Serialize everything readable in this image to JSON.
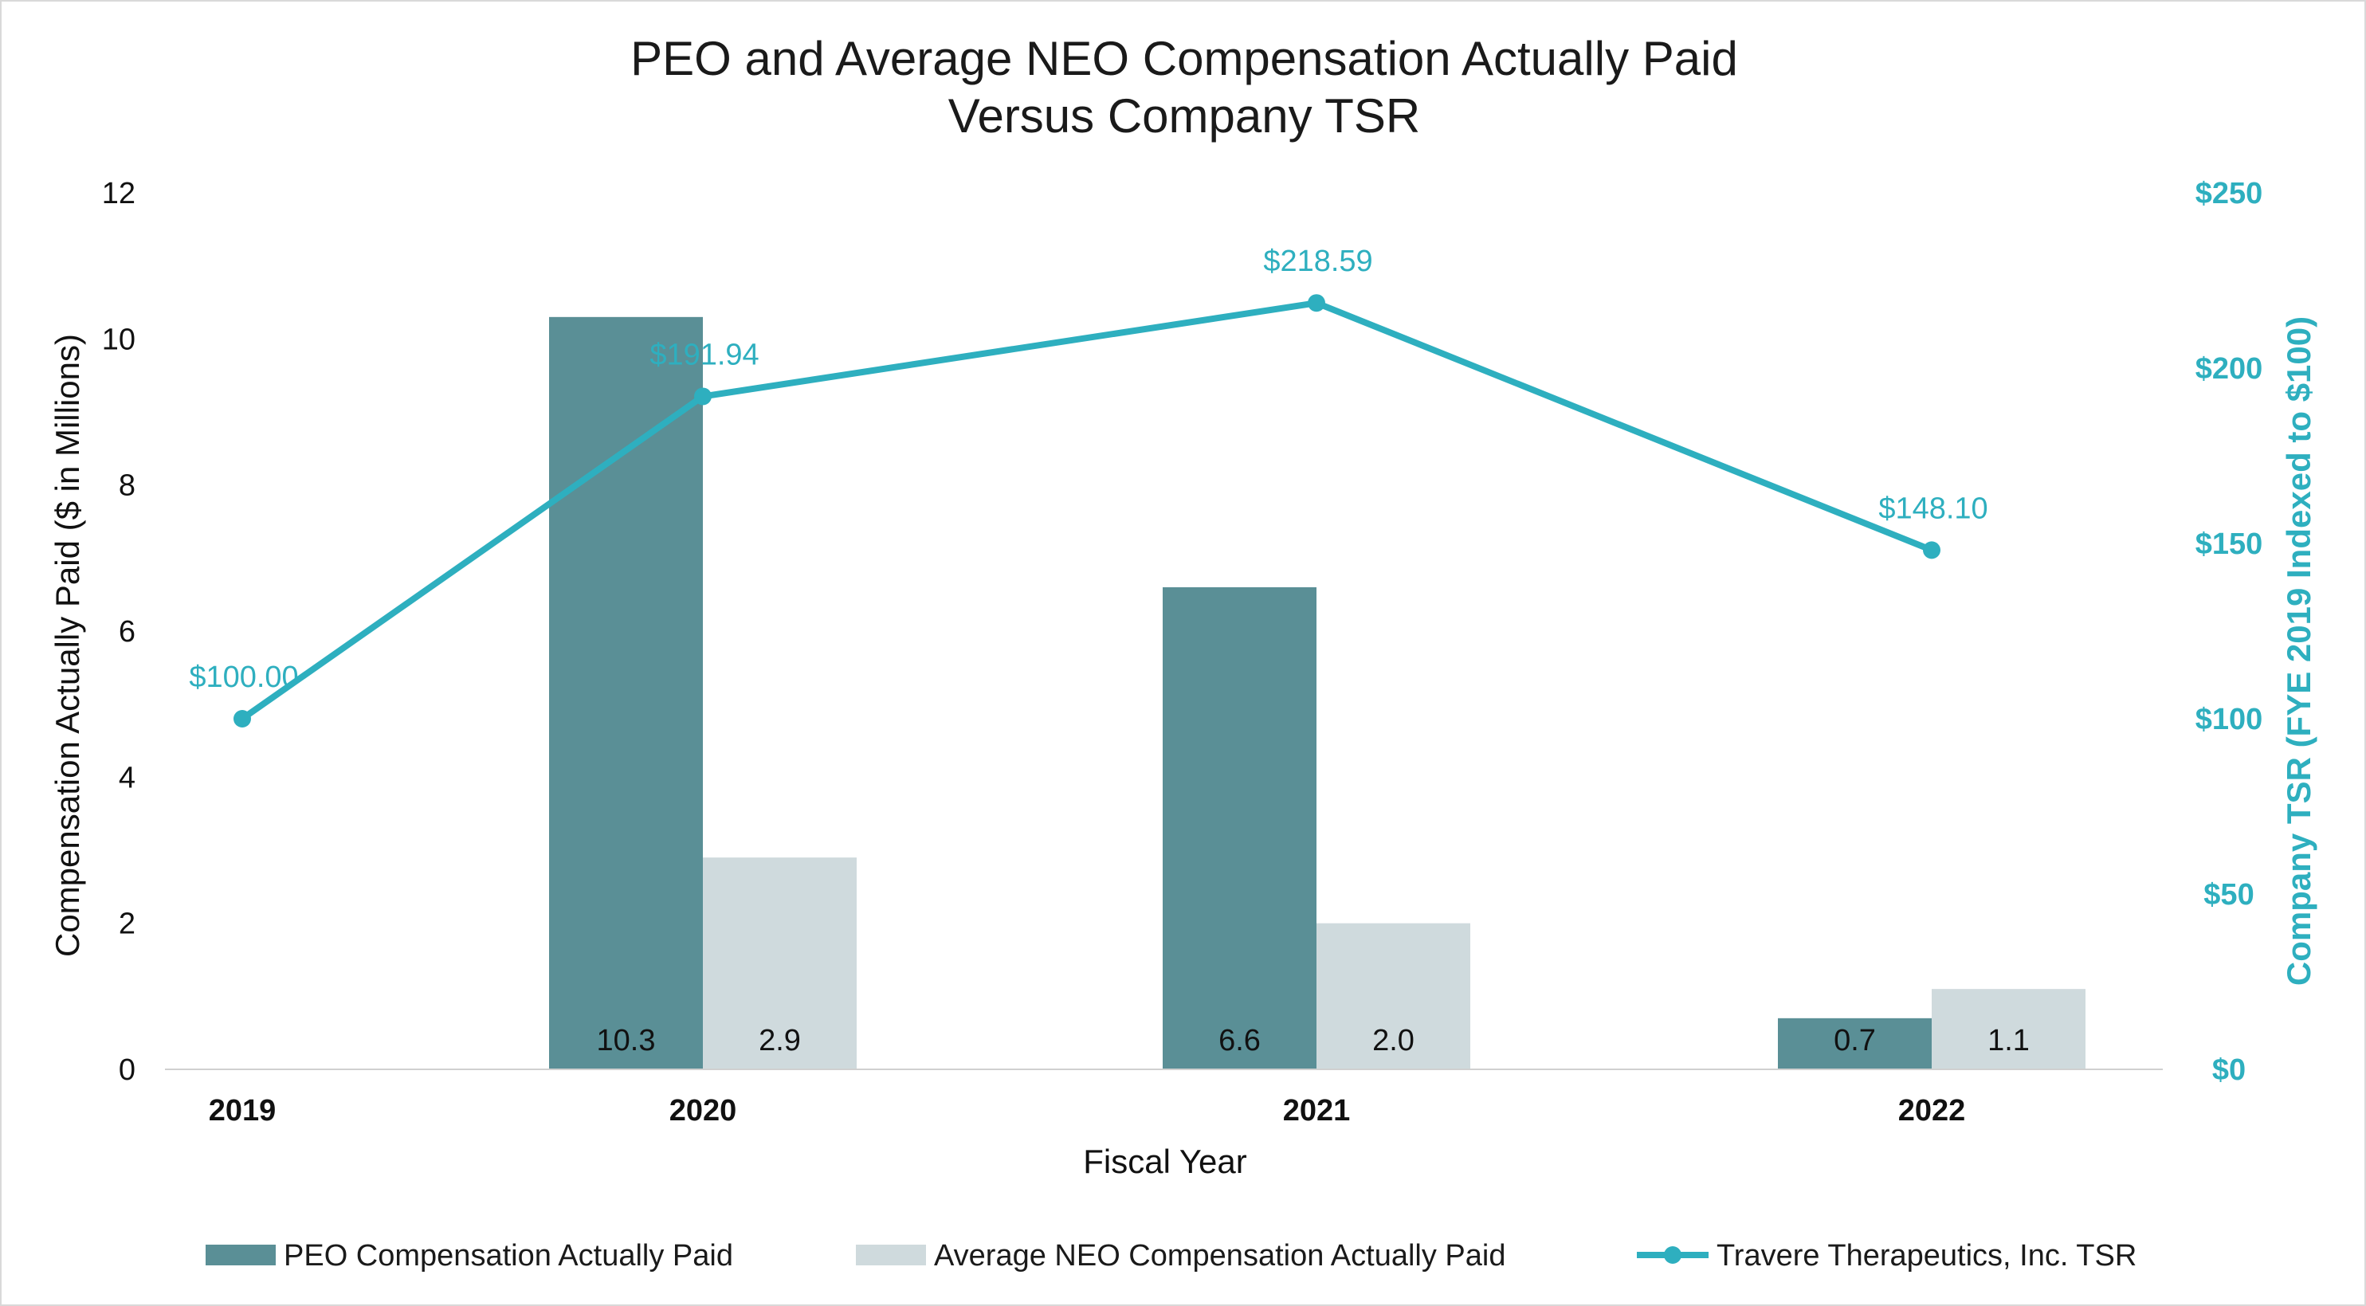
{
  "chart_data": {
    "type": "bar",
    "title_lines": [
      "PEO and Average NEO Compensation Actually Paid",
      "Versus Company TSR"
    ],
    "xlabel": "Fiscal Year",
    "ylabel": "Compensation Actually Paid ($ in Millions)",
    "y2label": "Company TSR (FYE 2019 Indexed to $100)",
    "categories": [
      "2019",
      "2020",
      "2021",
      "2022"
    ],
    "ylim": [
      0,
      12
    ],
    "yticks": [
      "0",
      "2",
      "4",
      "6",
      "8",
      "10",
      "12"
    ],
    "y2lim": [
      0,
      250
    ],
    "y2ticks": [
      "$0",
      "$50",
      "$100",
      "$150",
      "$200",
      "$250"
    ],
    "grid": false,
    "legend_position": "bottom",
    "series": [
      {
        "name": "PEO Compensation Actually Paid",
        "type": "bar",
        "axis": "left",
        "color": "#5a8f96",
        "values": [
          null,
          10.3,
          6.6,
          0.7
        ],
        "labels": [
          "",
          "10.3",
          "6.6",
          "0.7"
        ]
      },
      {
        "name": "Average NEO Compensation Actually Paid",
        "type": "bar",
        "axis": "left",
        "color": "#cfdadd",
        "values": [
          null,
          2.9,
          2.0,
          1.1
        ],
        "labels": [
          "",
          "2.9",
          "2.0",
          "1.1"
        ]
      },
      {
        "name": "Travere Therapeutics, Inc. TSR",
        "type": "line",
        "axis": "right",
        "color": "#2eafbf",
        "values": [
          100.0,
          191.94,
          218.59,
          148.1
        ],
        "labels": [
          "$100.00",
          "$191.94",
          "$218.59",
          "$148.10"
        ]
      }
    ]
  }
}
